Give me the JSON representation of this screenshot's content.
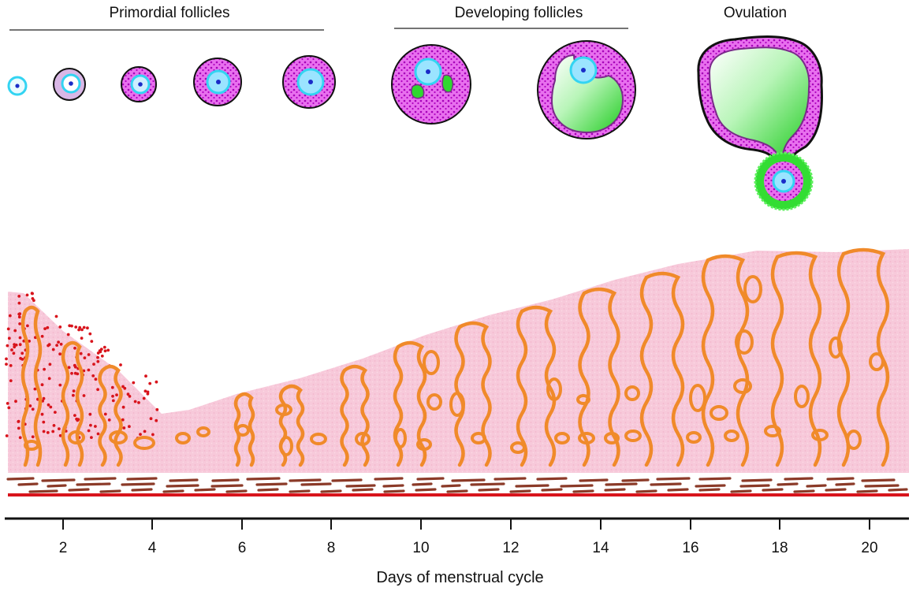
{
  "headings": {
    "primordial": "Primordial follicles",
    "developing": "Developing follicles",
    "ovulation": "Ovulation"
  },
  "axis": {
    "title": "Days of menstrual cycle",
    "ticks": [
      "2",
      "4",
      "6",
      "8",
      "10",
      "12",
      "14",
      "16",
      "18",
      "20"
    ]
  },
  "colors": {
    "oocyte": "#33d4f2",
    "nucleus": "#1a2cc8",
    "granulosa": "#e060e8",
    "granulosa_dots": "#a000b0",
    "antrum": "#2fd82f",
    "endometrium": "#f7c6d8",
    "gland": "#f08a2a",
    "blood": "#d8141c",
    "basal": "#8b3a28"
  }
}
